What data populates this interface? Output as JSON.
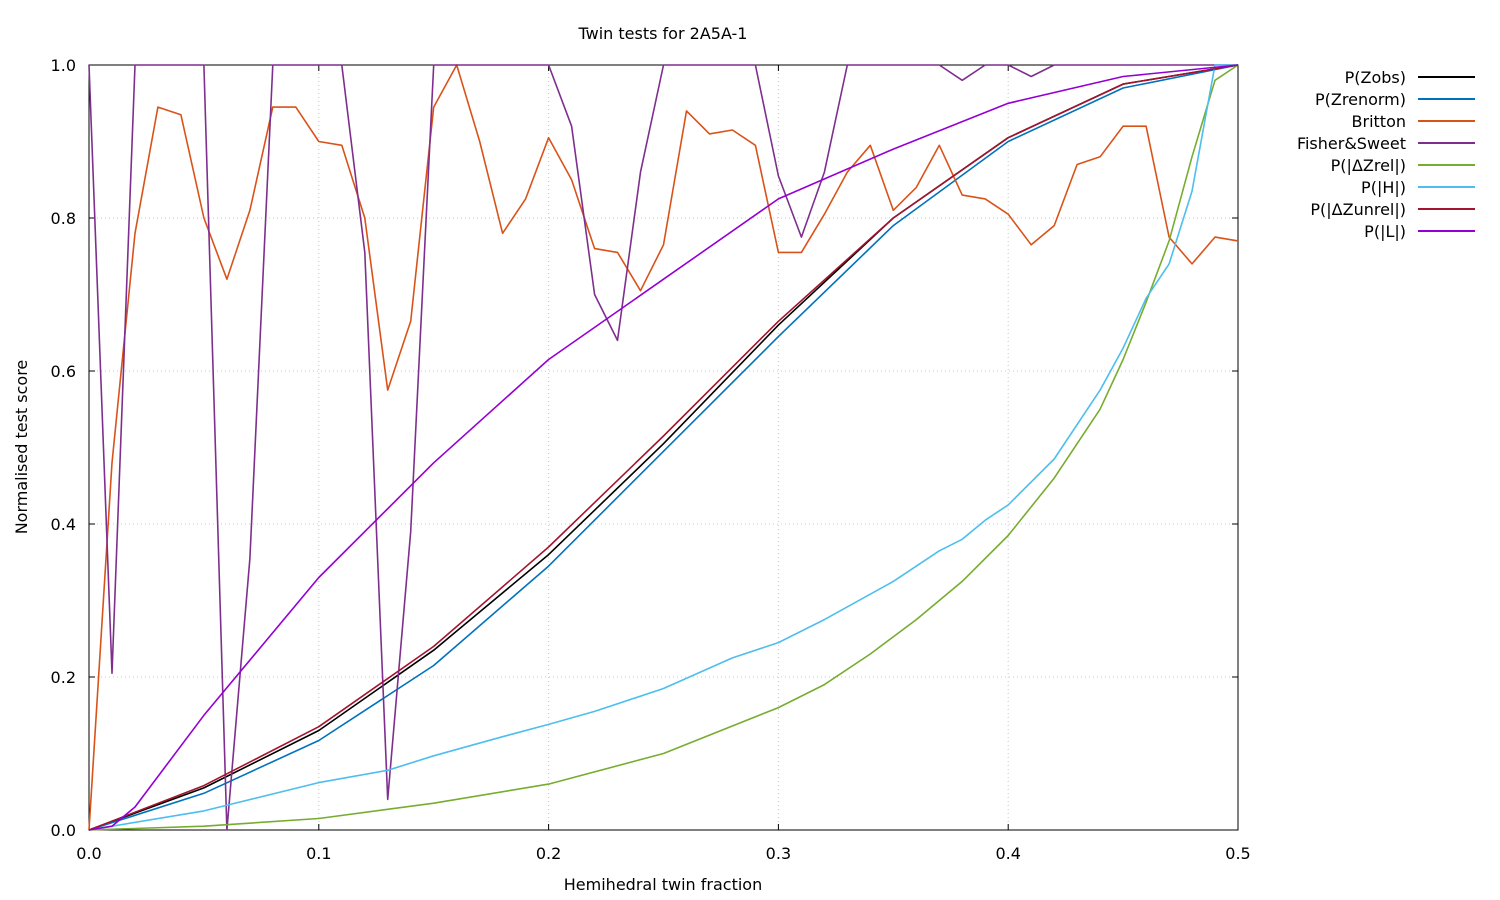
{
  "chart_data": {
    "type": "line",
    "title": "Twin tests for 2A5A-1",
    "xlabel": "Hemihedral twin fraction",
    "ylabel": "Normalised test score",
    "xlim": [
      0.0,
      0.5
    ],
    "ylim": [
      0.0,
      1.0
    ],
    "xticks": [
      0.0,
      0.1,
      0.2,
      0.3,
      0.4,
      0.5
    ],
    "xtick_labels": [
      "0.0",
      "0.1",
      "0.2",
      "0.3",
      "0.4",
      "0.5"
    ],
    "yticks": [
      0.0,
      0.2,
      0.4,
      0.6,
      0.8,
      1.0
    ],
    "ytick_labels": [
      "0.0",
      "0.2",
      "0.4",
      "0.6",
      "0.8",
      "1.0"
    ],
    "grid": true,
    "legend_position": "outside-right",
    "series": [
      {
        "name": "P(Zobs)",
        "color": "#000000",
        "x": [
          0.0,
          0.05,
          0.1,
          0.15,
          0.2,
          0.25,
          0.3,
          0.35,
          0.4,
          0.45,
          0.5
        ],
        "y": [
          0.0,
          0.055,
          0.13,
          0.235,
          0.36,
          0.505,
          0.66,
          0.8,
          0.905,
          0.975,
          1.0
        ]
      },
      {
        "name": "P(Zrenorm)",
        "color": "#0072bd",
        "x": [
          0.0,
          0.05,
          0.1,
          0.15,
          0.2,
          0.25,
          0.3,
          0.35,
          0.4,
          0.45,
          0.5
        ],
        "y": [
          0.0,
          0.048,
          0.117,
          0.215,
          0.345,
          0.495,
          0.645,
          0.79,
          0.9,
          0.97,
          1.0
        ]
      },
      {
        "name": "Britton",
        "color": "#d95319",
        "x": [
          0.0,
          0.01,
          0.02,
          0.03,
          0.04,
          0.05,
          0.06,
          0.07,
          0.08,
          0.09,
          0.1,
          0.11,
          0.12,
          0.13,
          0.14,
          0.15,
          0.16,
          0.17,
          0.18,
          0.19,
          0.2,
          0.21,
          0.22,
          0.23,
          0.24,
          0.25,
          0.26,
          0.27,
          0.28,
          0.29,
          0.3,
          0.31,
          0.32,
          0.33,
          0.34,
          0.35,
          0.36,
          0.37,
          0.38,
          0.39,
          0.4,
          0.41,
          0.42,
          0.43,
          0.44,
          0.45,
          0.46,
          0.47,
          0.48,
          0.49,
          0.5
        ],
        "y": [
          0.0,
          0.48,
          0.78,
          0.945,
          0.935,
          0.8,
          0.72,
          0.81,
          0.945,
          0.945,
          0.9,
          0.895,
          0.8,
          0.575,
          0.665,
          0.945,
          1.0,
          0.9,
          0.78,
          0.825,
          0.905,
          0.85,
          0.76,
          0.755,
          0.705,
          0.765,
          0.94,
          0.91,
          0.915,
          0.895,
          0.755,
          0.755,
          0.805,
          0.86,
          0.895,
          0.81,
          0.84,
          0.895,
          0.83,
          0.825,
          0.805,
          0.765,
          0.79,
          0.87,
          0.88,
          0.92,
          0.92,
          0.775,
          0.74,
          0.775,
          0.77
        ]
      },
      {
        "name": "Fisher&Sweet",
        "color": "#7e2f8e",
        "x": [
          0.0,
          0.01,
          0.02,
          0.03,
          0.04,
          0.05,
          0.06,
          0.07,
          0.08,
          0.09,
          0.1,
          0.11,
          0.12,
          0.13,
          0.14,
          0.15,
          0.16,
          0.17,
          0.18,
          0.19,
          0.2,
          0.21,
          0.22,
          0.23,
          0.24,
          0.25,
          0.26,
          0.27,
          0.28,
          0.29,
          0.3,
          0.31,
          0.32,
          0.33,
          0.34,
          0.35,
          0.36,
          0.37,
          0.38,
          0.39,
          0.4,
          0.41,
          0.42,
          0.43,
          0.44,
          0.45,
          0.46,
          0.47,
          0.48,
          0.49,
          0.5
        ],
        "y": [
          1.0,
          0.205,
          1.0,
          1.0,
          1.0,
          1.0,
          0.0,
          0.355,
          1.0,
          1.0,
          1.0,
          1.0,
          0.755,
          0.04,
          0.39,
          1.0,
          1.0,
          1.0,
          1.0,
          1.0,
          1.0,
          0.92,
          0.7,
          0.64,
          0.86,
          1.0,
          1.0,
          1.0,
          1.0,
          1.0,
          0.855,
          0.775,
          0.86,
          1.0,
          1.0,
          1.0,
          1.0,
          1.0,
          0.98,
          1.0,
          1.0,
          0.985,
          1.0,
          1.0,
          1.0,
          1.0,
          1.0,
          1.0,
          1.0,
          1.0,
          1.0
        ]
      },
      {
        "name": "P(|ΔZrel|)",
        "color": "#77ac30",
        "x": [
          0.0,
          0.05,
          0.1,
          0.15,
          0.2,
          0.25,
          0.3,
          0.32,
          0.34,
          0.36,
          0.38,
          0.4,
          0.42,
          0.44,
          0.45,
          0.46,
          0.47,
          0.48,
          0.49,
          0.5
        ],
        "y": [
          0.0,
          0.005,
          0.015,
          0.035,
          0.06,
          0.1,
          0.16,
          0.19,
          0.23,
          0.275,
          0.325,
          0.385,
          0.46,
          0.55,
          0.615,
          0.69,
          0.77,
          0.88,
          0.98,
          1.0
        ]
      },
      {
        "name": "P(|H|)",
        "color": "#4dbeee",
        "x": [
          0.0,
          0.05,
          0.1,
          0.13,
          0.15,
          0.18,
          0.2,
          0.22,
          0.25,
          0.28,
          0.3,
          0.32,
          0.35,
          0.37,
          0.38,
          0.39,
          0.4,
          0.42,
          0.44,
          0.45,
          0.46,
          0.47,
          0.48,
          0.49,
          0.5
        ],
        "y": [
          0.0,
          0.025,
          0.062,
          0.078,
          0.097,
          0.122,
          0.138,
          0.155,
          0.185,
          0.225,
          0.245,
          0.275,
          0.325,
          0.365,
          0.38,
          0.405,
          0.425,
          0.485,
          0.575,
          0.63,
          0.695,
          0.74,
          0.835,
          1.0,
          1.0
        ]
      },
      {
        "name": "P(|ΔZunrel|)",
        "color": "#a2142f",
        "x": [
          0.0,
          0.05,
          0.1,
          0.15,
          0.2,
          0.25,
          0.3,
          0.35,
          0.4,
          0.45,
          0.5
        ],
        "y": [
          0.0,
          0.058,
          0.135,
          0.24,
          0.37,
          0.515,
          0.665,
          0.8,
          0.905,
          0.975,
          1.0
        ]
      },
      {
        "name": "P(|L|)",
        "color": "#9400d3",
        "x": [
          0.0,
          0.01,
          0.02,
          0.05,
          0.1,
          0.15,
          0.2,
          0.25,
          0.3,
          0.35,
          0.4,
          0.45,
          0.5
        ],
        "y": [
          0.0,
          0.005,
          0.03,
          0.15,
          0.33,
          0.48,
          0.615,
          0.72,
          0.825,
          0.89,
          0.95,
          0.985,
          1.0
        ]
      }
    ]
  }
}
